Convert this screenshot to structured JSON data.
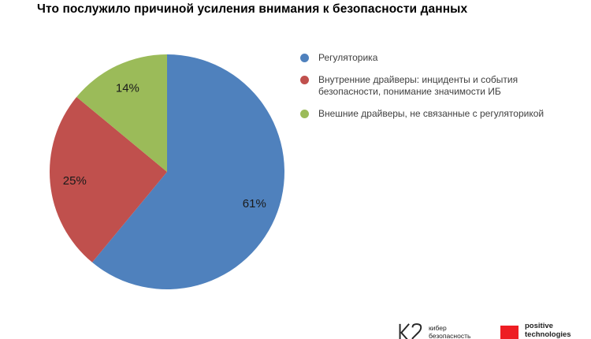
{
  "chart_data": {
    "type": "pie",
    "title": "Что послужило причиной усиления внимания к безопасности данных",
    "start_angle_deg": 0,
    "direction": "clockwise",
    "legend_position": "right",
    "label_color": "#1a1a1a",
    "slices": [
      {
        "label": "Регуляторика",
        "value": 61,
        "display": "61%",
        "color": "#4F81BD"
      },
      {
        "label": "Внутренние драйверы: инциденты и события безопасности, понимание значимости ИБ",
        "value": 25,
        "display": "25%",
        "color": "#C0504D"
      },
      {
        "label": "Внешние драйверы, не связанные с регуляторикой",
        "value": 14,
        "display": "14%",
        "color": "#9BBB59"
      }
    ]
  },
  "footer": {
    "k2": {
      "line1": "кибер",
      "line2": "безопасность",
      "mark_color": "#262626"
    },
    "pt": {
      "line1": "positive",
      "line2": "technologies",
      "square_color": "#EE1D23"
    }
  }
}
